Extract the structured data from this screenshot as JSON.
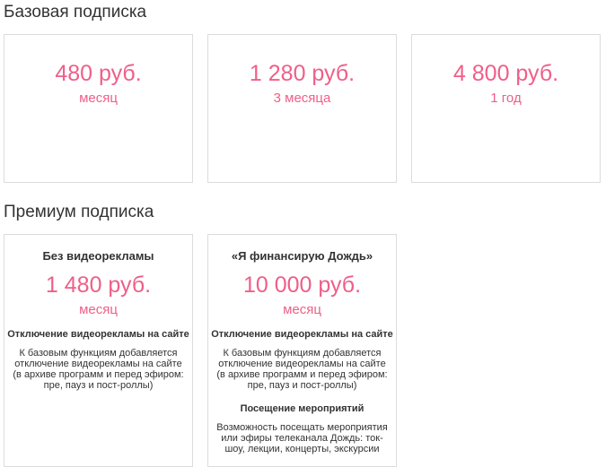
{
  "basic": {
    "title": "Базовая подписка",
    "plans": [
      {
        "price": "480 руб.",
        "period": "месяц"
      },
      {
        "price": "1 280 руб.",
        "period": "3 месяца"
      },
      {
        "price": "4 800 руб.",
        "period": "1 год"
      }
    ]
  },
  "premium": {
    "title": "Премиум подписка",
    "plans": [
      {
        "name": "Без видеорекламы",
        "price": "1 480 руб.",
        "period": "месяц",
        "features": [
          {
            "title": "Отключение видеорекламы на сайте",
            "desc": "К базовым функциям добавляется отключение видеорекламы на сайте (в архиве программ и перед эфиром: пре, пауз и пост-роллы)"
          }
        ]
      },
      {
        "name": "«Я финансирую Дождь»",
        "price": "10 000 руб.",
        "period": "месяц",
        "features": [
          {
            "title": "Отключение видеорекламы на сайте",
            "desc": "К базовым функциям добавляется отключение видеорекламы на сайте (в архиве программ и перед эфиром: пре, пауз и пост-роллы)"
          },
          {
            "title": "Посещение мероприятий",
            "desc": "Возможность посещать мероприятия или эфиры телеканала Дождь: ток-шоу, лекции, концерты, экскурсии"
          }
        ]
      }
    ]
  },
  "colors": {
    "accent": "#ef5f88",
    "text": "#333333",
    "border": "#dcdcdc"
  }
}
